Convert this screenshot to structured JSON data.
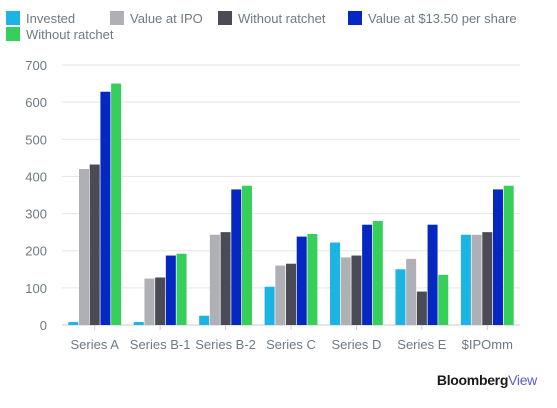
{
  "chart_data": {
    "type": "bar",
    "title": "",
    "xlabel": "",
    "ylabel": "",
    "categories": [
      "Series A",
      "Series B-1",
      "Series B-2",
      "Series C",
      "Series D",
      "Series E",
      "$IPOmm"
    ],
    "ylim": [
      0,
      700
    ],
    "yticks": [
      "0",
      "100",
      "200",
      "300",
      "400",
      "500",
      "600",
      "700"
    ],
    "grid": true,
    "legend_position": "top",
    "series": [
      {
        "name": "Invested",
        "color": "#1bb4e4",
        "values": [
          8,
          8,
          25,
          103,
          222,
          150,
          243
        ]
      },
      {
        "name": "Value at IPO",
        "color": "#aeb0b5",
        "values": [
          420,
          125,
          243,
          160,
          182,
          178,
          243
        ]
      },
      {
        "name": "Without ratchet",
        "color": "#4a4b55",
        "values": [
          432,
          128,
          250,
          165,
          187,
          90,
          250
        ]
      },
      {
        "name": "Value at $13.50 per share",
        "color": "#0628c2",
        "values": [
          628,
          187,
          365,
          238,
          270,
          270,
          365
        ]
      },
      {
        "name": "Without ratchet",
        "color": "#35cf5a",
        "values": [
          650,
          192,
          375,
          245,
          280,
          135,
          375
        ]
      }
    ]
  },
  "brand": {
    "part1": "Bloomberg",
    "part2": "View"
  }
}
